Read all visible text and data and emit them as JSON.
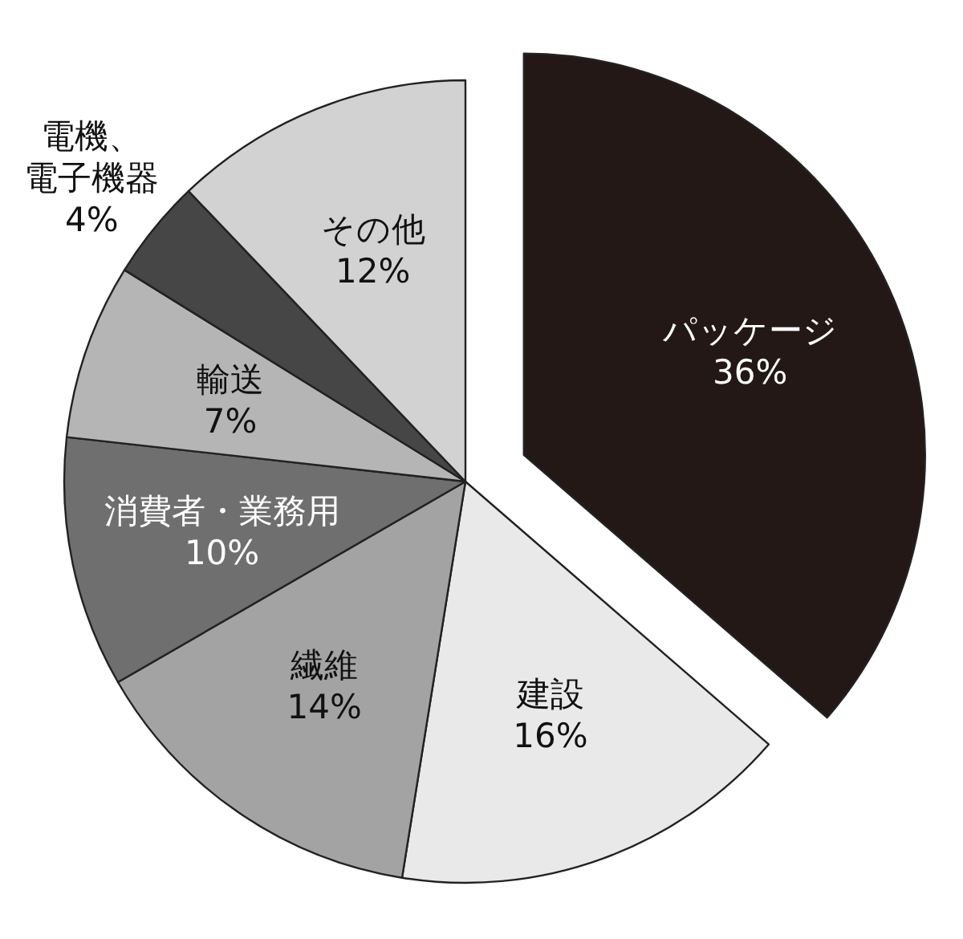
{
  "chart_data": {
    "type": "pie",
    "categories": [
      "パッケージ",
      "建設",
      "繊維",
      "消費者・業務用",
      "輸送",
      "電機、電子機器",
      "その他"
    ],
    "values": [
      36,
      16,
      14,
      10,
      7,
      4,
      12
    ],
    "value_labels": [
      "36%",
      "16%",
      "14%",
      "10%",
      "7%",
      "4%",
      "12%"
    ],
    "colors": [
      "#231815",
      "#e9e9e9",
      "#a3a3a3",
      "#6f6f6f",
      "#b5b5b5",
      "#464646",
      "#d2d2d2"
    ]
  }
}
